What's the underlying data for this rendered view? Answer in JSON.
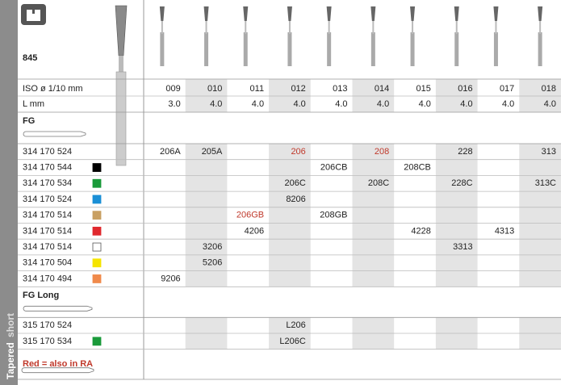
{
  "logo_number": "845",
  "header": {
    "iso_label": "ISO ø 1/10 mm",
    "length_label": "L mm"
  },
  "columns": {
    "iso": [
      "009",
      "010",
      "011",
      "012",
      "013",
      "014",
      "015",
      "016",
      "017",
      "018"
    ],
    "length": [
      "3.0",
      "4.0",
      "4.0",
      "4.0",
      "4.0",
      "4.0",
      "4.0",
      "4.0",
      "4.0",
      "4.0"
    ]
  },
  "sections": [
    {
      "title": "FG",
      "rows": [
        {
          "code": "314 170 524",
          "swatch": null,
          "cells": [
            "206A",
            "205A",
            null,
            {
              "text": "206",
              "color": "#c0392b"
            },
            null,
            {
              "text": "208",
              "color": "#c0392b"
            },
            null,
            "228",
            null,
            "313"
          ]
        },
        {
          "code": "314 170 544",
          "swatch": "#000000",
          "cells": [
            null,
            null,
            null,
            null,
            "206CB",
            null,
            "208CB",
            null,
            null,
            null
          ]
        },
        {
          "code": "314 170 534",
          "swatch": "#1a9a3a",
          "cells": [
            null,
            null,
            null,
            "206C",
            null,
            "208C",
            null,
            "228C",
            null,
            "313C"
          ]
        },
        {
          "code": "314 170 524",
          "swatch": "#1a8fd6",
          "cells": [
            null,
            null,
            null,
            "8206",
            null,
            null,
            null,
            null,
            null,
            null
          ]
        },
        {
          "code": "314 170 514",
          "swatch": "#c9a063",
          "cells": [
            null,
            null,
            {
              "text": "206GB",
              "color": "#c0392b"
            },
            null,
            "208GB",
            null,
            null,
            null,
            null,
            null
          ]
        },
        {
          "code": "314 170 514",
          "swatch": "#e0282e",
          "cells": [
            null,
            null,
            "4206",
            null,
            null,
            null,
            "4228",
            null,
            "4313",
            null
          ]
        },
        {
          "code": "314 170 514",
          "swatch": "#ffffff",
          "cells": [
            null,
            "3206",
            null,
            null,
            null,
            null,
            null,
            "3313",
            null,
            null
          ]
        },
        {
          "code": "314 170 504",
          "swatch": "#f5e400",
          "cells": [
            null,
            "5206",
            null,
            null,
            null,
            null,
            null,
            null,
            null,
            null
          ]
        },
        {
          "code": "314 170 494",
          "swatch": "#f08a4b",
          "cells": [
            "9206",
            null,
            null,
            null,
            null,
            null,
            null,
            null,
            null,
            null
          ]
        }
      ]
    },
    {
      "title": "FG Long",
      "rows": [
        {
          "code": "315 170 524",
          "swatch": null,
          "cells": [
            null,
            null,
            null,
            "L206",
            null,
            null,
            null,
            null,
            null,
            null
          ]
        },
        {
          "code": "315 170 534",
          "swatch": "#1a9a3a",
          "cells": [
            null,
            null,
            null,
            "L206C",
            null,
            null,
            null,
            null,
            null,
            null
          ]
        }
      ]
    }
  ],
  "note": "Red = also in RA",
  "side_label": [
    "Tapered",
    "short"
  ]
}
